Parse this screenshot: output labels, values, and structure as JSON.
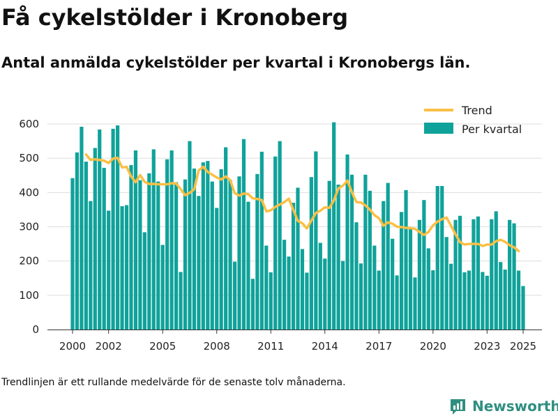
{
  "header": {
    "title": "Få cykelstölder i Kronoberg",
    "subtitle": "Antal anmälda cykelstölder per kvartal i Kronobergs län."
  },
  "footer": {
    "note": "Trendlinjen är ett rullande medelvärde för de senaste tolv månaderna.",
    "brand": "Newsworthy"
  },
  "colors": {
    "bars": "#0fa29a",
    "trend": "#fbbf45",
    "grid": "#dddddd",
    "brand": "#2f8f80"
  },
  "chart_data": {
    "type": "bar",
    "title": "",
    "xlabel": "",
    "ylabel": "",
    "ylim": [
      0,
      650
    ],
    "yticks": [
      0,
      100,
      200,
      300,
      400,
      500,
      600
    ],
    "x_ticks": [
      {
        "label": "2000",
        "year": 2000
      },
      {
        "label": "2002",
        "year": 2002
      },
      {
        "label": "2005",
        "year": 2005
      },
      {
        "label": "2008",
        "year": 2008
      },
      {
        "label": "2011",
        "year": 2011
      },
      {
        "label": "2014",
        "year": 2014
      },
      {
        "label": "2017",
        "year": 2017
      },
      {
        "label": "2020",
        "year": 2020
      },
      {
        "label": "2023",
        "year": 2023
      },
      {
        "label": "2025",
        "year": 2025
      }
    ],
    "grid": true,
    "legend_position": "top-right",
    "legend": [
      "Trend",
      "Per kvartal"
    ],
    "start": "2000 Q1",
    "series": [
      {
        "name": "Per kvartal",
        "type": "bar",
        "values": [
          442,
          517,
          592,
          490,
          375,
          530,
          584,
          472,
          347,
          586,
          596,
          360,
          363,
          480,
          523,
          436,
          284,
          456,
          526,
          432,
          247,
          497,
          523,
          430,
          168,
          438,
          550,
          470,
          390,
          488,
          492,
          432,
          355,
          468,
          532,
          436,
          198,
          447,
          556,
          373,
          148,
          454,
          519,
          245,
          167,
          505,
          550,
          262,
          213,
          370,
          414,
          235,
          166,
          445,
          520,
          253,
          207,
          434,
          605,
          423,
          200,
          511,
          452,
          313,
          193,
          452,
          405,
          245,
          172,
          375,
          428,
          265,
          158,
          343,
          407,
          297,
          152,
          320,
          378,
          237,
          173,
          419,
          419,
          270,
          192,
          320,
          332,
          167,
          172,
          322,
          330,
          168,
          157,
          322,
          345,
          197,
          175,
          320,
          310,
          172,
          127
        ]
      },
      {
        "name": "Trend",
        "type": "line",
        "values": [
          null,
          null,
          null,
          511,
          495,
          497,
          495,
          493,
          486,
          499,
          501,
          473,
          475,
          447,
          430,
          451,
          431,
          425,
          425,
          424,
          424,
          424,
          427,
          426,
          410,
          392,
          399,
          409,
          465,
          475,
          460,
          452,
          444,
          438,
          447,
          436,
          398,
          391,
          397,
          395,
          383,
          381,
          378,
          345,
          348,
          358,
          365,
          372,
          382,
          349,
          317,
          310,
          295,
          318,
          340,
          347,
          357,
          355,
          377,
          412,
          420,
          435,
          401,
          372,
          371,
          362,
          350,
          334,
          325,
          303,
          313,
          309,
          300,
          299,
          297,
          296,
          294,
          285,
          276,
          285,
          304,
          315,
          322,
          327,
          303,
          278,
          255,
          248,
          250,
          250,
          250,
          244,
          248,
          248,
          258,
          262,
          256,
          246,
          240,
          229,
          null
        ]
      }
    ]
  }
}
